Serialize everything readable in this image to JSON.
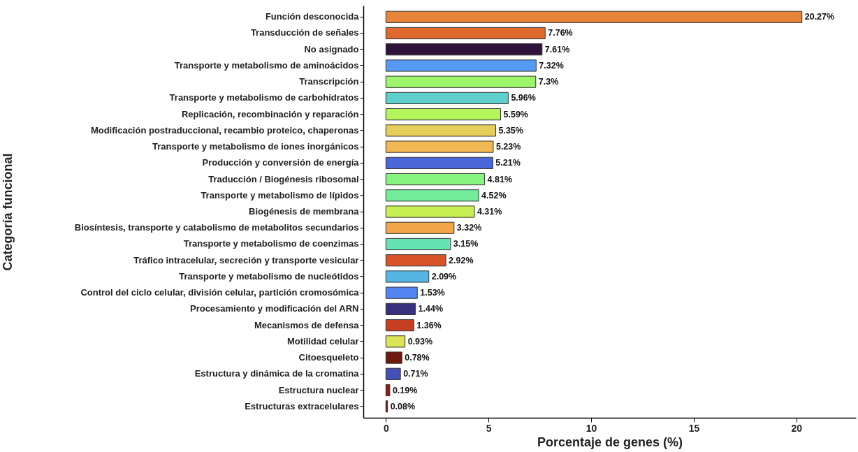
{
  "chart_data": {
    "type": "bar",
    "orientation": "horizontal",
    "xlabel": "Porcentaje de genes (%)",
    "ylabel": "Categoría funcional",
    "categories": [
      "Función desconocida",
      "Transducción de señales",
      "No asignado",
      "Transporte y metabolismo de aminoácidos",
      "Transcripción",
      "Transporte y metabolismo de carbohidratos",
      "Replicación, recombinación y reparación",
      "Modificación postraduccional, recambio proteico, chaperonas",
      "Transporte y metabolismo de iones inorgánicos",
      "Producción y conversión de energía",
      "Traducción / Biogénesis ribosomal",
      "Transporte y metabolismo de lípidos",
      "Biogénesis de membrana",
      "Biosíntesis, transporte y catabolismo de metabolitos secundarios",
      "Transporte y metabolismo de coenzimas",
      "Tráfico intracelular, secreción y transporte vesicular",
      "Transporte y metabolismo de nucleótidos",
      "Control del ciclo celular, división celular, partición cromosómica",
      "Procesamiento y modificación del ARN",
      "Mecanismos de defensa",
      "Motilidad celular",
      "Citoesqueleto",
      "Estructura y dinámica de la cromatina",
      "Estructura nuclear",
      "Estructuras extracelulares"
    ],
    "values": [
      20.27,
      7.76,
      7.61,
      7.32,
      7.3,
      5.96,
      5.59,
      5.35,
      5.23,
      5.21,
      4.81,
      4.52,
      4.31,
      3.32,
      3.15,
      2.92,
      2.09,
      1.53,
      1.44,
      1.36,
      0.93,
      0.78,
      0.71,
      0.19,
      0.08
    ],
    "value_labels": [
      "20.27%",
      "7.76%",
      "7.61%",
      "7.32%",
      "7.3%",
      "5.96%",
      "5.59%",
      "5.35%",
      "5.23%",
      "5.21%",
      "4.81%",
      "4.52%",
      "4.31%",
      "3.32%",
      "3.15%",
      "2.92%",
      "2.09%",
      "1.53%",
      "1.44%",
      "1.36%",
      "0.93%",
      "0.78%",
      "0.71%",
      "0.19%",
      "0.08%"
    ],
    "colors": [
      "#e8843a",
      "#e0692f",
      "#30133b",
      "#559af5",
      "#9cf56a",
      "#5ecfcc",
      "#b3f55a",
      "#e6cf58",
      "#f0b752",
      "#4a66d8",
      "#86f57f",
      "#74ed9a",
      "#c8f055",
      "#f2a64a",
      "#66e3b3",
      "#d85428",
      "#55b6e4",
      "#5285f2",
      "#3b2f80",
      "#c63f21",
      "#dbe356",
      "#6e1a0f",
      "#4350b8",
      "#8a2010",
      "#6b1a0d"
    ],
    "xlim": [
      -1.1,
      22.9
    ],
    "xticks": [
      0,
      5,
      10,
      15,
      20
    ]
  }
}
